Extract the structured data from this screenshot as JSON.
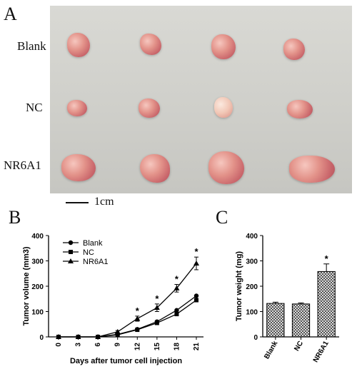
{
  "panels": {
    "a": "A",
    "b": "B",
    "c": "C"
  },
  "photo": {
    "rows": [
      "Blank",
      "NC",
      "NR6A1"
    ],
    "scale_label": "1cm"
  },
  "chart_data": [
    {
      "type": "line",
      "xlabel": "Days after tumor cell injection",
      "ylabel": "Tumor volume (mm3)",
      "x": [
        0,
        3,
        6,
        9,
        12,
        15,
        18,
        21
      ],
      "ylim": [
        0,
        400
      ],
      "yticks": [
        0,
        100,
        200,
        300,
        400
      ],
      "legend_position": "top-left",
      "series": [
        {
          "name": "Blank",
          "marker": "circle",
          "values": [
            0,
            0,
            0,
            10,
            30,
            60,
            105,
            162
          ]
        },
        {
          "name": "NC",
          "marker": "square",
          "values": [
            0,
            0,
            0,
            8,
            28,
            55,
            90,
            145
          ]
        },
        {
          "name": "NR6A1",
          "marker": "triangle",
          "values": [
            0,
            0,
            0,
            20,
            72,
            115,
            192,
            290
          ],
          "errors": [
            0,
            0,
            0,
            5,
            10,
            15,
            15,
            25
          ]
        }
      ],
      "annotations": [
        {
          "x": 12,
          "label": "*"
        },
        {
          "x": 15,
          "label": "*"
        },
        {
          "x": 18,
          "label": "*"
        },
        {
          "x": 21,
          "label": "*"
        }
      ]
    },
    {
      "type": "bar",
      "ylabel": "Tumor weight (mg)",
      "categories": [
        "Blank",
        "NC",
        "NR6A1"
      ],
      "values": [
        132,
        130,
        258
      ],
      "errors": [
        5,
        4,
        30
      ],
      "ylim": [
        0,
        400
      ],
      "yticks": [
        0,
        100,
        200,
        300,
        400
      ],
      "annotations": [
        {
          "category": "NR6A1",
          "label": "*"
        }
      ]
    }
  ]
}
